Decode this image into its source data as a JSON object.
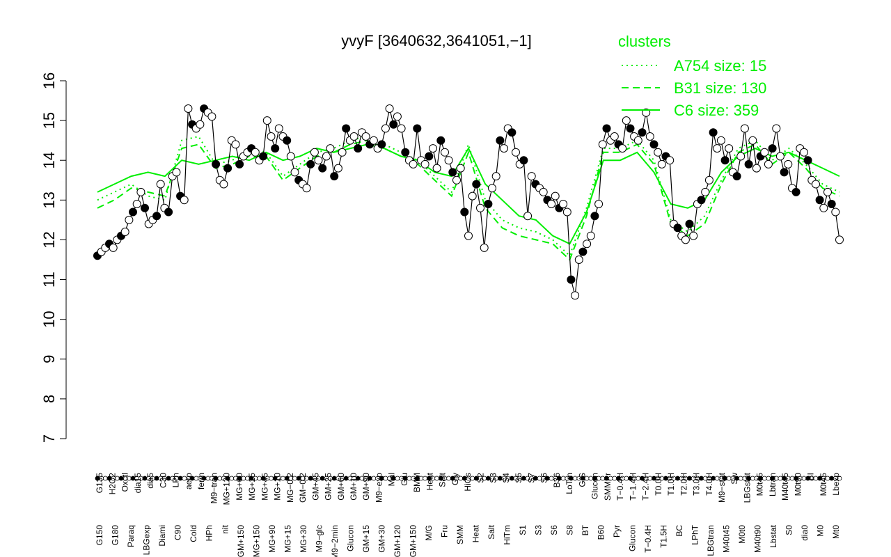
{
  "chart_data": {
    "type": "line",
    "title": "yvyF [3640632,3641051,−1]",
    "xlabel": "",
    "ylabel": "",
    "ylim": [
      7,
      16
    ],
    "y_ticks": [
      7,
      8,
      9,
      10,
      11,
      12,
      13,
      14,
      15,
      16
    ],
    "legend": {
      "title": "clusters",
      "position": "top-right",
      "entries": [
        {
          "label": "A754 size: 15",
          "style": "dotted"
        },
        {
          "label": "B31 size: 130",
          "style": "dashed"
        },
        {
          "label": "C6 size: 359",
          "style": "solid"
        }
      ]
    },
    "label_axis_top": [
      "G135",
      "H2O2",
      "Oxctl",
      "dia15",
      "dia5",
      "C30",
      "LPh",
      "aero",
      "ferm",
      "M9−tran",
      "MG+120",
      "MG+60",
      "MG+25",
      "MG+45",
      "MG+10",
      "MG−0.2",
      "GM−0.2",
      "GM+45",
      "GM+25",
      "GM+60",
      "GM+10",
      "GM+90",
      "M9−exp",
      "Mal",
      "Glu",
      "BMM",
      "Heat",
      "Salt",
      "Gly",
      "HiOs",
      "S2",
      "S3",
      "S4",
      "S5",
      "S7",
      "S6",
      "B36",
      "LoTm",
      "G/S",
      "Glucon",
      "SMMPr",
      "T−0.4H",
      "T−1.4H",
      "T−2.4H",
      "T0.0H",
      "T1.0H",
      "T2.0H",
      "T3.0H",
      "T4.0H",
      "M9−stat",
      "Sw",
      "LBGstat",
      "M0t45",
      "Lbtran",
      "M40t45",
      "M0t90",
      "BI",
      "M0t45",
      "Lbexp"
    ],
    "label_axis_bottom": [
      "G150",
      "G180",
      "Paraq",
      "LBGexp",
      "Diami",
      "C90",
      "Cold",
      "HPh",
      "nit",
      "GM+150",
      "MG+150",
      "MG+90",
      "MG+15",
      "MG+30",
      "M9−glc",
      "M9−2min",
      "Glucon",
      "GM+15",
      "GM+30",
      "GM+120",
      "GM+150",
      "M/G",
      "Fru",
      "SMM",
      "Heat",
      "Salt",
      "HiTm",
      "S1",
      "S3",
      "S6",
      "S8",
      "BT",
      "B60",
      "Pyr",
      "Glucon",
      "T−0.4H",
      "T1.5H",
      "BC",
      "LPhT",
      "LBGtran",
      "M40t45",
      "M0t0",
      "M40t90",
      "Lbstat",
      "S0",
      "dia0",
      "M0",
      "Mt0"
    ],
    "series": [
      {
        "name": "points",
        "values": [
          11.6,
          11.7,
          11.8,
          11.9,
          11.8,
          12.0,
          12.1,
          12.2,
          12.5,
          12.7,
          12.9,
          13.2,
          12.8,
          12.4,
          12.5,
          12.6,
          13.4,
          12.8,
          12.7,
          13.6,
          13.7,
          13.1,
          13.0,
          15.3,
          14.9,
          14.8,
          14.9,
          15.3,
          15.2,
          15.1,
          13.9,
          13.5,
          13.4,
          13.8,
          14.5,
          14.4,
          13.9,
          14.1,
          14.2,
          14.3,
          14.2,
          14.0,
          14.1,
          15.0,
          14.6,
          14.3,
          14.8,
          14.6,
          14.5,
          14.1,
          13.7,
          13.5,
          13.4,
          13.3,
          13.9,
          14.2,
          14.0,
          13.8,
          14.1,
          14.3,
          13.6,
          13.8,
          14.2,
          14.8,
          14.5,
          14.6,
          14.3,
          14.7,
          14.6,
          14.4,
          14.5,
          14.3,
          14.4,
          14.8,
          15.3,
          14.9,
          15.1,
          14.8,
          14.2,
          14.0,
          13.9,
          14.8,
          14.0,
          13.9,
          14.1,
          14.3,
          13.8,
          14.5,
          14.2,
          14.0,
          13.7,
          13.5,
          13.8,
          12.7,
          12.1,
          13.1,
          13.4,
          12.8,
          11.8,
          12.9,
          13.3,
          13.6,
          14.5,
          14.3,
          14.8,
          14.7,
          14.2,
          13.9,
          14.0,
          12.6,
          13.6,
          13.4,
          13.3,
          13.2,
          13.0,
          12.9,
          13.1,
          12.8,
          12.9,
          12.7,
          11.0,
          10.6,
          11.5,
          11.7,
          11.9,
          12.1,
          12.6,
          12.9,
          14.4,
          14.8,
          14.5,
          14.6,
          14.4,
          14.3,
          15.0,
          14.8,
          14.6,
          14.5,
          14.7,
          15.2,
          14.6,
          14.4,
          14.2,
          13.9,
          14.1,
          14.0,
          12.4,
          12.3,
          12.1,
          12.0,
          12.4,
          12.1,
          12.9,
          13.0,
          13.2,
          13.5,
          14.7,
          14.3,
          14.5,
          14.0,
          14.3,
          13.7,
          13.6,
          14.1,
          14.8,
          13.9,
          14.5,
          13.8,
          14.1,
          14.2,
          13.9,
          14.3,
          14.8,
          14.1,
          13.7,
          13.9,
          13.3,
          13.2,
          14.3,
          14.2,
          14.0,
          13.5,
          13.4,
          13.0,
          12.8,
          13.2,
          12.9,
          12.7,
          12.0
        ]
      },
      {
        "name": "A754 size: 15",
        "values": [
          13.0,
          13.2,
          13.4,
          13.1,
          13.0,
          14.5,
          14.6,
          13.9,
          14.0,
          14.3,
          14.2,
          13.6,
          13.9,
          14.2,
          14.3,
          14.5,
          14.6,
          14.4,
          14.2,
          14.0,
          13.6,
          13.2,
          14.4,
          13.0,
          12.5,
          12.3,
          12.2,
          12.0,
          11.6,
          12.8,
          14.3,
          14.3,
          14.5,
          14.0,
          12.5,
          12.2,
          12.6,
          13.5,
          14.3,
          14.5,
          14.0,
          14.3,
          13.9,
          13.4,
          13.2
        ]
      },
      {
        "name": "B31 size: 130",
        "values": [
          12.8,
          13.0,
          13.3,
          13.2,
          13.1,
          14.3,
          14.4,
          13.8,
          13.9,
          14.1,
          14.1,
          13.5,
          13.8,
          14.1,
          14.2,
          14.4,
          14.5,
          14.3,
          14.1,
          13.9,
          13.5,
          13.1,
          14.2,
          12.8,
          12.3,
          12.1,
          12.0,
          11.9,
          11.5,
          12.6,
          14.2,
          14.2,
          14.4,
          13.9,
          12.4,
          12.1,
          12.4,
          13.4,
          14.2,
          14.4,
          13.9,
          14.2,
          13.8,
          13.3,
          13.1
        ]
      },
      {
        "name": "C6 size: 359",
        "values": [
          13.2,
          13.4,
          13.6,
          13.7,
          13.6,
          14.0,
          13.9,
          14.0,
          14.1,
          14.0,
          14.2,
          14.0,
          14.1,
          14.3,
          14.2,
          14.3,
          14.4,
          14.3,
          14.1,
          14.0,
          13.7,
          13.6,
          14.3,
          13.4,
          13.0,
          12.6,
          12.5,
          12.1,
          11.9,
          12.7,
          14.0,
          14.0,
          14.2,
          13.7,
          12.9,
          12.8,
          13.0,
          13.7,
          14.1,
          14.3,
          14.1,
          14.2,
          14.0,
          13.8,
          13.6
        ]
      }
    ],
    "colors": {
      "cluster": "#00ee00",
      "points": "#000000",
      "axis": "#000000"
    },
    "grid": false
  }
}
